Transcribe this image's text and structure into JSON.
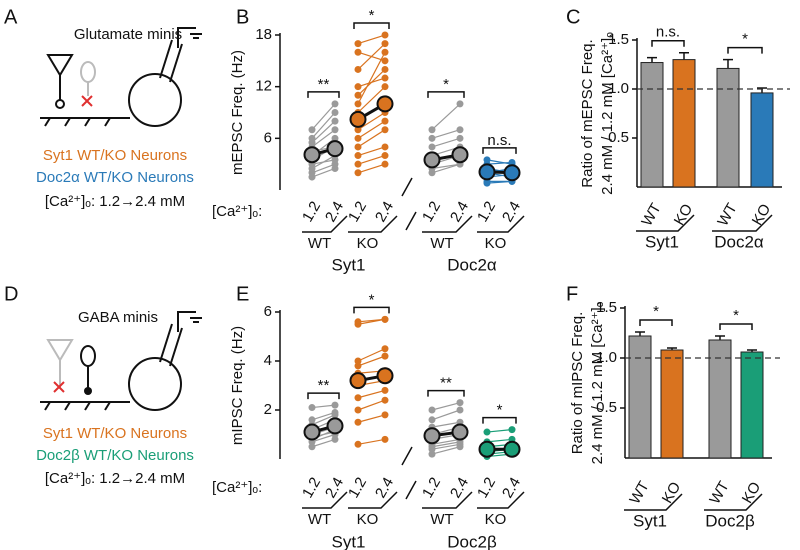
{
  "panels": [
    {
      "letter": "A",
      "title": "Glutamate minis",
      "lines": [
        "Syt1 WT/KO Neurons",
        "Doc2α WT/KO Neurons",
        "[Ca²⁺]ₒ: 1.2→2.4 mM"
      ]
    },
    {
      "letter": "D",
      "title": "GABA minis",
      "lines": [
        "Syt1 WT/KO Neurons",
        "Doc2β WT/KO Neurons",
        "[Ca²⁺]ₒ: 1.2→2.4 mM"
      ]
    }
  ],
  "chart_data": [
    {
      "type": "paired",
      "letter": "B",
      "ylabel": "mEPSC Freq. (Hz)",
      "ylim": [
        0,
        18
      ],
      "yticks": [
        6,
        12,
        18
      ],
      "conditions_label": "[Ca²⁺]ₒ:",
      "conditions": [
        "1.2",
        "2.4"
      ],
      "genes": [
        "Syt1",
        "Doc2α"
      ],
      "groups": [
        {
          "name": "WT",
          "color": "#9a9a9a",
          "sig": "**",
          "mean": [
            4.1,
            4.8
          ],
          "pairs": [
            [
              1.5,
              2.5
            ],
            [
              2,
              3
            ],
            [
              2.5,
              4
            ],
            [
              3,
              3.5
            ],
            [
              3.5,
              5
            ],
            [
              4,
              6
            ],
            [
              4.5,
              5
            ],
            [
              5,
              7
            ],
            [
              5.5,
              8
            ],
            [
              6,
              9
            ],
            [
              7,
              10
            ]
          ]
        },
        {
          "name": "KO",
          "color": "#d9731f",
          "sig": "*",
          "mean": [
            8.2,
            10
          ],
          "pairs": [
            [
              2,
              3
            ],
            [
              3,
              4
            ],
            [
              4,
              5
            ],
            [
              5,
              7
            ],
            [
              6,
              8
            ],
            [
              7,
              9
            ],
            [
              8,
              10
            ],
            [
              9,
              12
            ],
            [
              10,
              16
            ],
            [
              11,
              14
            ],
            [
              12,
              13
            ],
            [
              14,
              17
            ],
            [
              16,
              15
            ],
            [
              17,
              18
            ]
          ]
        },
        {
          "name": "WT",
          "color": "#9a9a9a",
          "sig": "*",
          "mean": [
            3.5,
            4.1
          ],
          "pairs": [
            [
              2,
              3
            ],
            [
              2.5,
              3
            ],
            [
              3,
              4
            ],
            [
              3.5,
              4
            ],
            [
              4,
              5
            ],
            [
              5,
              6
            ],
            [
              6,
              7
            ],
            [
              7,
              10
            ]
          ]
        },
        {
          "name": "KO",
          "color": "#2a7ab8",
          "sig": "n.s.",
          "mean": [
            2.1,
            2
          ],
          "pairs": [
            [
              0.8,
              1
            ],
            [
              1,
              1
            ],
            [
              1.5,
              1.8
            ],
            [
              2,
              1.5
            ],
            [
              2,
              2.5
            ],
            [
              2.5,
              2
            ],
            [
              3,
              3.2
            ],
            [
              3.5,
              3
            ]
          ]
        }
      ]
    },
    {
      "type": "bar",
      "letter": "C",
      "ylabel": [
        "Ratio of mEPSC Freq.",
        "2.4 mM / 1.2 mM [Ca²⁺]ₒ"
      ],
      "ylim": [
        0,
        1.5
      ],
      "yticks": [
        0.5,
        {
          "value": 1,
          "label": "1.0"
        },
        1.5
      ],
      "refline": 1,
      "categories": [
        "WT",
        "KO",
        "WT",
        "KO"
      ],
      "genes": [
        "Syt1",
        "Doc2α"
      ],
      "values": [
        1.27,
        1.3,
        1.21,
        0.96
      ],
      "errors": [
        0.05,
        0.07,
        0.09,
        0.05
      ],
      "colors": [
        "#9a9a9a",
        "#d9731f",
        "#9a9a9a",
        "#2a7ab8"
      ],
      "sig": [
        "n.s.",
        "*"
      ]
    },
    {
      "type": "paired",
      "letter": "E",
      "ylabel": "mIPSC Freq. (Hz)",
      "ylim": [
        0,
        6
      ],
      "yticks": [
        2,
        4,
        6
      ],
      "conditions_label": "[Ca²⁺]ₒ:",
      "conditions": [
        "1.2",
        "2.4"
      ],
      "genes": [
        "Syt1",
        "Doc2β"
      ],
      "groups": [
        {
          "name": "WT",
          "color": "#9a9a9a",
          "sig": "**",
          "mean": [
            1.1,
            1.35
          ],
          "pairs": [
            [
              0.5,
              0.8
            ],
            [
              0.7,
              1
            ],
            [
              0.8,
              1.2
            ],
            [
              0.9,
              1.1
            ],
            [
              1,
              1.3
            ],
            [
              1.1,
              1.4
            ],
            [
              1.2,
              1.6
            ],
            [
              1.4,
              1.8
            ],
            [
              1.6,
              1.9
            ],
            [
              2.1,
              2.2
            ]
          ]
        },
        {
          "name": "KO",
          "color": "#d9731f",
          "sig": "*",
          "mean": [
            3.2,
            3.4
          ],
          "pairs": [
            [
              0.6,
              0.8
            ],
            [
              1.5,
              1.8
            ],
            [
              2,
              2.4
            ],
            [
              2.5,
              2.8
            ],
            [
              3,
              3.2
            ],
            [
              3.5,
              3.6
            ],
            [
              3.8,
              4.2
            ],
            [
              4,
              4.5
            ],
            [
              5.5,
              5.7
            ],
            [
              5.6,
              5.7
            ]
          ]
        },
        {
          "name": "WT",
          "color": "#9a9a9a",
          "sig": "**",
          "mean": [
            0.95,
            1.1
          ],
          "pairs": [
            [
              0.2,
              0.5
            ],
            [
              0.4,
              0.6
            ],
            [
              0.5,
              0.7
            ],
            [
              0.6,
              0.8
            ],
            [
              0.8,
              1
            ],
            [
              1,
              1.3
            ],
            [
              1.3,
              1.5
            ],
            [
              1.6,
              2
            ],
            [
              2,
              2.3
            ]
          ]
        },
        {
          "name": "KO",
          "color": "#1a9e77",
          "sig": "*",
          "mean": [
            0.4,
            0.4
          ],
          "pairs": [
            [
              0.1,
              0.2
            ],
            [
              0.2,
              0.3
            ],
            [
              0.3,
              0.4
            ],
            [
              0.5,
              0.6
            ],
            [
              0.7,
              0.8
            ],
            [
              1.1,
              1.2
            ]
          ]
        }
      ]
    },
    {
      "type": "bar",
      "letter": "F",
      "ylabel": [
        "Ratio of mIPSC Freq.",
        "2.4 mM / 1.2 mM [Ca²⁺]ₒ"
      ],
      "ylim": [
        0,
        1.5
      ],
      "yticks": [
        0.5,
        {
          "value": 1,
          "label": "1.0"
        },
        1.5
      ],
      "refline": 1,
      "categories": [
        "WT",
        "KO",
        "WT",
        "KO"
      ],
      "genes": [
        "Syt1",
        "Doc2β"
      ],
      "values": [
        1.22,
        1.08,
        1.18,
        1.06
      ],
      "errors": [
        0.04,
        0.02,
        0.04,
        0.02
      ],
      "colors": [
        "#9a9a9a",
        "#d9731f",
        "#9a9a9a",
        "#1a9e77"
      ],
      "sig": [
        "*",
        "*"
      ]
    }
  ]
}
